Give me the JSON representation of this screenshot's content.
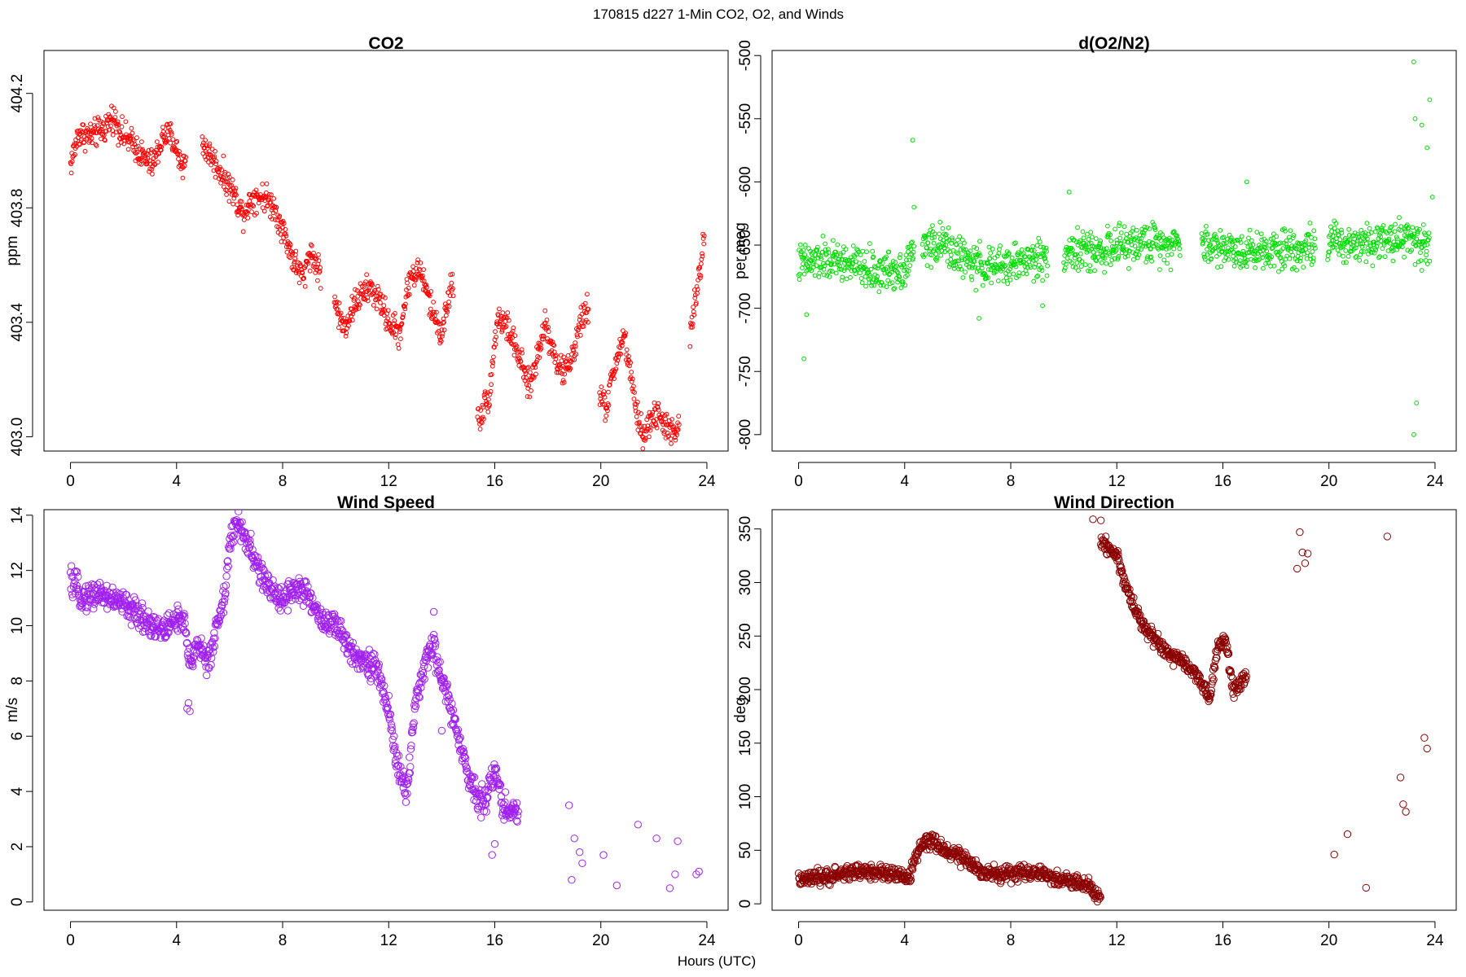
{
  "figure": {
    "title": "170815   d227   1-Min CO2, O2, and Winds",
    "xlabel": "Hours (UTC)"
  },
  "chart_data": [
    {
      "type": "scatter",
      "title": "CO2",
      "ylabel": "ppm",
      "xlim": [
        -1,
        24.8
      ],
      "ylim": [
        402.95,
        404.35
      ],
      "xticks": [
        0,
        4,
        8,
        12,
        16,
        20,
        24
      ],
      "yticks": [
        403.0,
        403.4,
        403.8,
        404.2
      ],
      "ytick_labels": [
        "403.0",
        "403.4",
        "403.8",
        "404.2"
      ],
      "color": "#ff0000",
      "marker_radius": 2.4,
      "trend": [
        [
          0,
          403.95
        ],
        [
          0.3,
          404.06
        ],
        [
          0.8,
          404.05
        ],
        [
          1.3,
          404.08
        ],
        [
          1.6,
          404.12
        ],
        [
          2.0,
          404.05
        ],
        [
          2.4,
          404.02
        ],
        [
          2.8,
          403.97
        ],
        [
          3.1,
          403.95
        ],
        [
          3.5,
          404.05
        ],
        [
          3.8,
          404.05
        ],
        [
          4.2,
          403.95
        ],
        [
          5.0,
          404.02
        ],
        [
          5.3,
          403.98
        ],
        [
          5.7,
          403.92
        ],
        [
          6.1,
          403.86
        ],
        [
          6.5,
          403.78
        ],
        [
          6.9,
          403.84
        ],
        [
          7.3,
          403.84
        ],
        [
          7.7,
          403.8
        ],
        [
          8.1,
          403.7
        ],
        [
          8.4,
          403.62
        ],
        [
          8.8,
          403.55
        ],
        [
          9.0,
          403.65
        ],
        [
          9.4,
          403.58
        ],
        [
          10.0,
          403.46
        ],
        [
          10.3,
          403.38
        ],
        [
          10.8,
          403.48
        ],
        [
          11.3,
          403.52
        ],
        [
          11.7,
          403.47
        ],
        [
          12.0,
          403.4
        ],
        [
          12.4,
          403.36
        ],
        [
          12.8,
          403.56
        ],
        [
          13.2,
          403.58
        ],
        [
          13.6,
          403.45
        ],
        [
          14.0,
          403.36
        ],
        [
          14.4,
          403.55
        ],
        [
          15.4,
          403.06
        ],
        [
          15.8,
          403.15
        ],
        [
          16.1,
          403.42
        ],
        [
          16.5,
          403.38
        ],
        [
          16.9,
          403.28
        ],
        [
          17.3,
          403.17
        ],
        [
          17.6,
          403.28
        ],
        [
          17.9,
          403.4
        ],
        [
          18.3,
          403.27
        ],
        [
          18.6,
          403.22
        ],
        [
          19.0,
          403.3
        ],
        [
          19.3,
          403.42
        ],
        [
          19.5,
          403.45
        ],
        [
          19.9,
          403.15
        ],
        [
          20.2,
          403.1
        ],
        [
          20.6,
          403.28
        ],
        [
          20.9,
          403.35
        ],
        [
          21.3,
          403.1
        ],
        [
          21.6,
          403.0
        ],
        [
          22.0,
          403.08
        ],
        [
          22.4,
          403.05
        ],
        [
          22.8,
          403.0
        ],
        [
          23.1,
          403.1
        ],
        [
          23.5,
          403.45
        ],
        [
          23.7,
          403.55
        ],
        [
          23.9,
          403.7
        ]
      ],
      "gaps": [
        [
          4.35,
          4.95
        ],
        [
          9.45,
          9.95
        ],
        [
          14.45,
          15.35
        ],
        [
          19.55,
          19.95
        ],
        [
          22.95,
          23.35
        ]
      ],
      "noise": 0.035
    },
    {
      "type": "scatter",
      "title": "d(O2/N2)",
      "ylabel": "per meg",
      "xlim": [
        -1,
        24.8
      ],
      "ylim": [
        -813,
        -496
      ],
      "xticks": [
        0,
        4,
        8,
        12,
        16,
        20,
        24
      ],
      "yticks": [
        -800,
        -750,
        -700,
        -650,
        -600,
        -550,
        -500
      ],
      "ytick_labels": [
        "-800",
        "-750",
        "-700",
        "-650",
        "-600",
        "-550",
        "-500"
      ],
      "color": "#00dd00",
      "marker_radius": 2.4,
      "trend": [
        [
          0,
          -665
        ],
        [
          1,
          -662
        ],
        [
          2,
          -665
        ],
        [
          3,
          -672
        ],
        [
          4,
          -668
        ],
        [
          4.5,
          -650
        ],
        [
          5.5,
          -650
        ],
        [
          6.5,
          -665
        ],
        [
          7.5,
          -668
        ],
        [
          8.5,
          -662
        ],
        [
          9.5,
          -660
        ],
        [
          10,
          -655
        ],
        [
          11,
          -655
        ],
        [
          12,
          -652
        ],
        [
          13,
          -648
        ],
        [
          14,
          -648
        ],
        [
          15,
          -648
        ],
        [
          16,
          -652
        ],
        [
          17,
          -655
        ],
        [
          18,
          -652
        ],
        [
          19,
          -652
        ],
        [
          20,
          -648
        ],
        [
          21,
          -648
        ],
        [
          22,
          -645
        ],
        [
          23,
          -645
        ],
        [
          23.8,
          -650
        ]
      ],
      "gaps": [
        [
          4.35,
          4.65
        ],
        [
          9.4,
          10.0
        ],
        [
          14.4,
          15.2
        ],
        [
          19.5,
          19.95
        ]
      ],
      "noise": 11,
      "outliers": [
        [
          0.2,
          -740
        ],
        [
          0.3,
          -705
        ],
        [
          4.3,
          -567
        ],
        [
          4.35,
          -620
        ],
        [
          6.8,
          -708
        ],
        [
          9.2,
          -698
        ],
        [
          10.2,
          -608
        ],
        [
          16.9,
          -600
        ],
        [
          23.2,
          -505
        ],
        [
          23.25,
          -550
        ],
        [
          23.3,
          -775
        ],
        [
          23.2,
          -800
        ],
        [
          23.5,
          -555
        ],
        [
          23.8,
          -535
        ],
        [
          23.7,
          -573
        ],
        [
          23.9,
          -612
        ],
        [
          23.5,
          -670
        ]
      ]
    },
    {
      "type": "scatter",
      "title": "Wind Speed",
      "ylabel": "m/s",
      "xlim": [
        -1,
        24.8
      ],
      "ylim": [
        -0.3,
        14.2
      ],
      "xticks": [
        0,
        4,
        8,
        12,
        16,
        20,
        24
      ],
      "yticks": [
        0,
        2,
        4,
        6,
        8,
        10,
        12,
        14
      ],
      "ytick_labels": [
        "0",
        "2",
        "4",
        "6",
        "8",
        "10",
        "12",
        "14"
      ],
      "color": "#a020f0",
      "marker_radius": 4.2,
      "trend": [
        [
          0,
          11.6
        ],
        [
          0.5,
          11.0
        ],
        [
          1,
          11.2
        ],
        [
          1.5,
          11.0
        ],
        [
          2,
          10.8
        ],
        [
          2.5,
          10.4
        ],
        [
          3,
          10.1
        ],
        [
          3.5,
          9.8
        ],
        [
          4,
          10.3
        ],
        [
          4.3,
          10.0
        ],
        [
          4.5,
          8.5
        ],
        [
          4.8,
          9.5
        ],
        [
          5.2,
          8.5
        ],
        [
          5.5,
          10.0
        ],
        [
          5.8,
          11.0
        ],
        [
          6,
          13.0
        ],
        [
          6.3,
          13.7
        ],
        [
          6.6,
          13.2
        ],
        [
          7,
          12.2
        ],
        [
          7.5,
          11.3
        ],
        [
          8,
          11.0
        ],
        [
          8.5,
          11.4
        ],
        [
          9,
          11.0
        ],
        [
          9.5,
          10.2
        ],
        [
          10,
          10.0
        ],
        [
          10.5,
          9.2
        ],
        [
          11,
          8.8
        ],
        [
          11.5,
          8.5
        ],
        [
          12,
          7.0
        ],
        [
          12.3,
          5.0
        ],
        [
          12.7,
          4.0
        ],
        [
          13.0,
          7.0
        ],
        [
          13.3,
          8.5
        ],
        [
          13.7,
          9.3
        ],
        [
          14.0,
          8.0
        ],
        [
          14.3,
          7.2
        ],
        [
          14.6,
          6.0
        ],
        [
          15.0,
          4.5
        ],
        [
          15.3,
          4.0
        ],
        [
          15.6,
          3.6
        ],
        [
          16.0,
          4.8
        ],
        [
          16.3,
          3.5
        ],
        [
          16.7,
          3.2
        ]
      ],
      "end": 16.9,
      "noise": 0.35,
      "outliers": [
        [
          4.4,
          7.0
        ],
        [
          4.45,
          7.2
        ],
        [
          4.5,
          6.9
        ],
        [
          13.7,
          10.5
        ],
        [
          14.0,
          6.2
        ],
        [
          15.9,
          1.7
        ],
        [
          16.0,
          2.1
        ],
        [
          18.8,
          3.5
        ],
        [
          18.9,
          0.8
        ],
        [
          19.0,
          2.3
        ],
        [
          19.2,
          1.8
        ],
        [
          19.3,
          1.4
        ],
        [
          20.1,
          1.7
        ],
        [
          20.6,
          0.6
        ],
        [
          21.4,
          2.8
        ],
        [
          22.1,
          2.3
        ],
        [
          22.6,
          0.5
        ],
        [
          22.8,
          1.0
        ],
        [
          22.9,
          2.2
        ],
        [
          23.6,
          1.0
        ],
        [
          23.7,
          1.1
        ]
      ]
    },
    {
      "type": "scatter",
      "title": "Wind Direction",
      "ylabel": "deg",
      "xlim": [
        -1,
        24.8
      ],
      "ylim": [
        -6,
        368
      ],
      "xticks": [
        0,
        4,
        8,
        12,
        16,
        20,
        24
      ],
      "yticks": [
        0,
        50,
        100,
        150,
        200,
        250,
        300,
        350
      ],
      "ytick_labels": [
        "0",
        "50",
        "100",
        "150",
        "200",
        "250",
        "300",
        "350"
      ],
      "color": "#8b0000",
      "marker_radius": 4.2,
      "trend": [
        [
          0,
          22
        ],
        [
          1,
          25
        ],
        [
          2,
          30
        ],
        [
          3,
          30
        ],
        [
          3.6,
          27
        ],
        [
          4.2,
          24
        ],
        [
          4.4,
          45
        ],
        [
          4.8,
          58
        ],
        [
          5.1,
          57
        ],
        [
          5.5,
          50
        ],
        [
          6,
          46
        ],
        [
          6.5,
          36
        ],
        [
          7,
          30
        ],
        [
          7.5,
          27
        ],
        [
          8,
          28
        ],
        [
          8.5,
          30
        ],
        [
          9,
          28
        ],
        [
          9.5,
          25
        ],
        [
          10,
          22
        ],
        [
          10.5,
          20
        ],
        [
          11,
          15
        ],
        [
          11.4,
          3
        ],
        [
          11.4,
          340
        ],
        [
          12,
          325
        ],
        [
          12.3,
          300
        ],
        [
          12.6,
          280
        ],
        [
          13,
          260
        ],
        [
          13.5,
          245
        ],
        [
          14,
          232
        ],
        [
          14.5,
          225
        ],
        [
          15,
          215
        ],
        [
          15.5,
          190
        ],
        [
          15.8,
          240
        ],
        [
          16.1,
          245
        ],
        [
          16.4,
          200
        ],
        [
          16.8,
          210
        ]
      ],
      "trend_breaks": [
        11.4
      ],
      "end": 16.9,
      "noise": 5,
      "outliers": [
        [
          11.1,
          359
        ],
        [
          11.4,
          358
        ],
        [
          18.8,
          313
        ],
        [
          18.9,
          347
        ],
        [
          19.0,
          328
        ],
        [
          19.1,
          318
        ],
        [
          19.2,
          327
        ],
        [
          20.2,
          46
        ],
        [
          20.7,
          65
        ],
        [
          21.4,
          15
        ],
        [
          22.2,
          343
        ],
        [
          22.7,
          118
        ],
        [
          22.8,
          93
        ],
        [
          22.9,
          86
        ],
        [
          23.6,
          155
        ],
        [
          23.7,
          145
        ]
      ]
    }
  ]
}
